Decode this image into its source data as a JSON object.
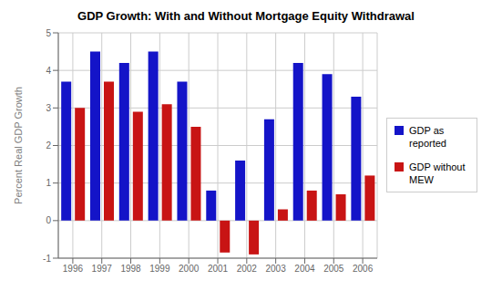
{
  "chart_data": {
    "type": "bar",
    "title": "GDP Growth: With and Without Mortgage Equity Withdrawal",
    "y_label": "Percent Real GDP Growth",
    "categories": [
      "1996",
      "1997",
      "1998",
      "1999",
      "2000",
      "2001",
      "2002",
      "2003",
      "2004",
      "2005",
      "2006"
    ],
    "series": [
      {
        "name": "GDP as\nreported",
        "color": "#1414c8",
        "values": [
          3.7,
          4.5,
          4.2,
          4.5,
          3.7,
          0.8,
          1.6,
          2.7,
          4.2,
          3.9,
          3.3
        ]
      },
      {
        "name": "GDP without\nMEW",
        "color": "#c81414",
        "values": [
          3.0,
          3.7,
          2.9,
          3.1,
          2.5,
          -0.85,
          -0.9,
          0.3,
          0.8,
          0.7,
          1.2
        ]
      }
    ],
    "ylim": [
      -1,
      5
    ],
    "yticks": [
      -1,
      0,
      1,
      2,
      3,
      4,
      5
    ],
    "grid": true,
    "legend": "right"
  }
}
